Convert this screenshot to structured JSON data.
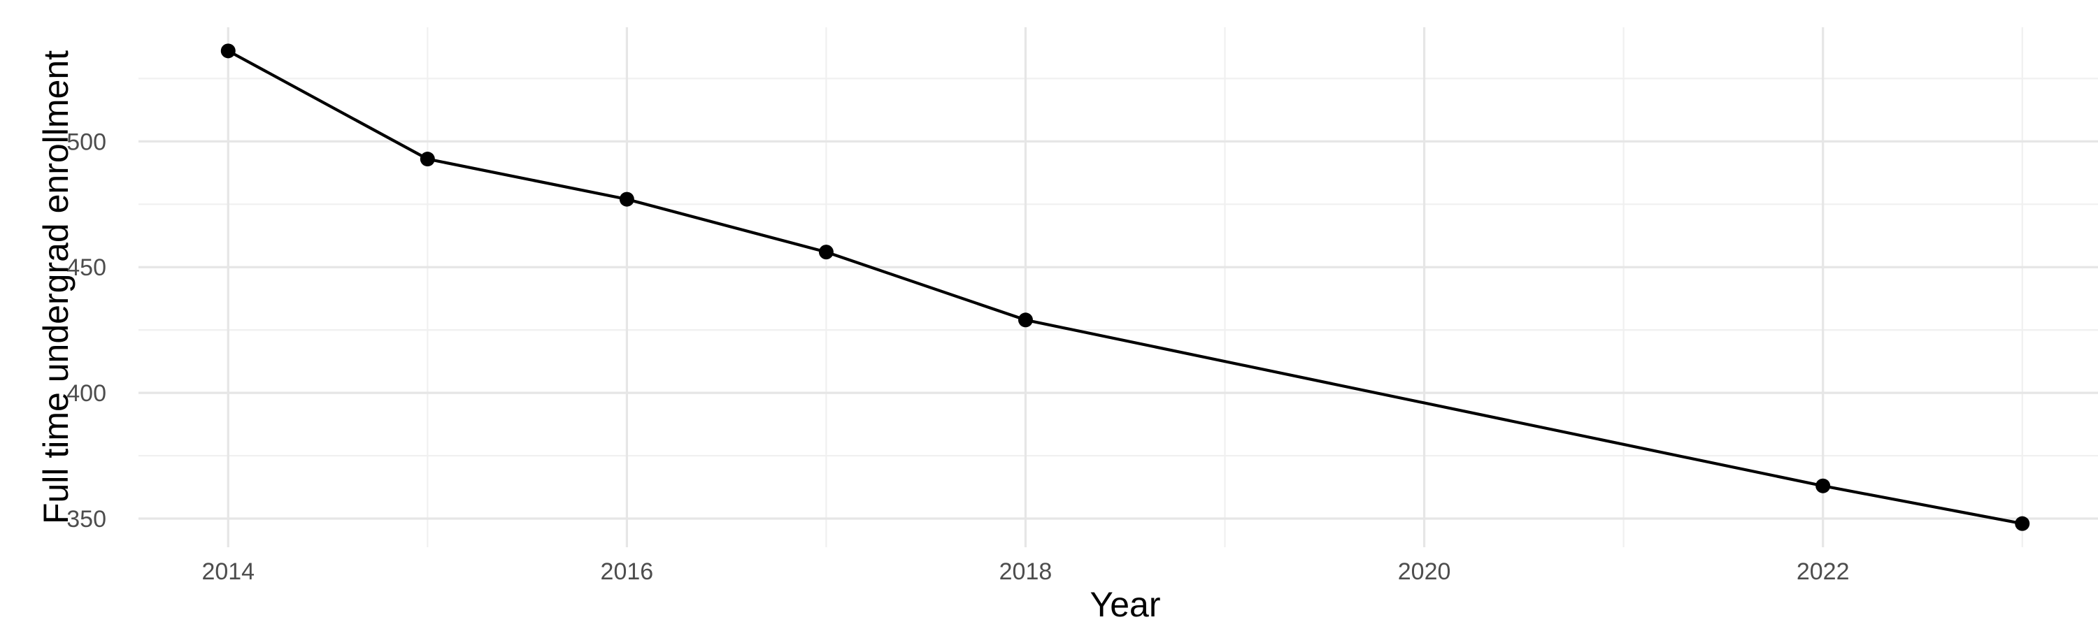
{
  "chart_data": {
    "type": "line",
    "title": "",
    "xlabel": "Year",
    "ylabel": "Full time undergrad enrollment",
    "series": [
      {
        "name": "Full time undergrad enrollment",
        "x": [
          2014,
          2015,
          2016,
          2017,
          2018,
          2022,
          2023
        ],
        "y": [
          536,
          493,
          477,
          456,
          429,
          363,
          348
        ]
      }
    ],
    "x_ticks": {
      "major": [
        2014,
        2016,
        2018,
        2020,
        2022
      ],
      "minor": [
        2015,
        2017,
        2019,
        2021,
        2023
      ]
    },
    "y_ticks": {
      "major": [
        350,
        400,
        450,
        500
      ],
      "minor": [
        375,
        425,
        475,
        525
      ]
    },
    "xlim": [
      2013.55,
      2023.45
    ],
    "ylim": [
      338.6,
      545.4
    ],
    "grid": "major+minor",
    "legend": "none",
    "point_marker": "filled-circle",
    "colors": {
      "line": "#000000",
      "point": "#000000",
      "grid_major": "#E6E6E6",
      "grid_minor": "#F0F0F0",
      "tick_label": "#4D4D4D",
      "axis_title": "#000000",
      "background": "#FFFFFF"
    }
  }
}
